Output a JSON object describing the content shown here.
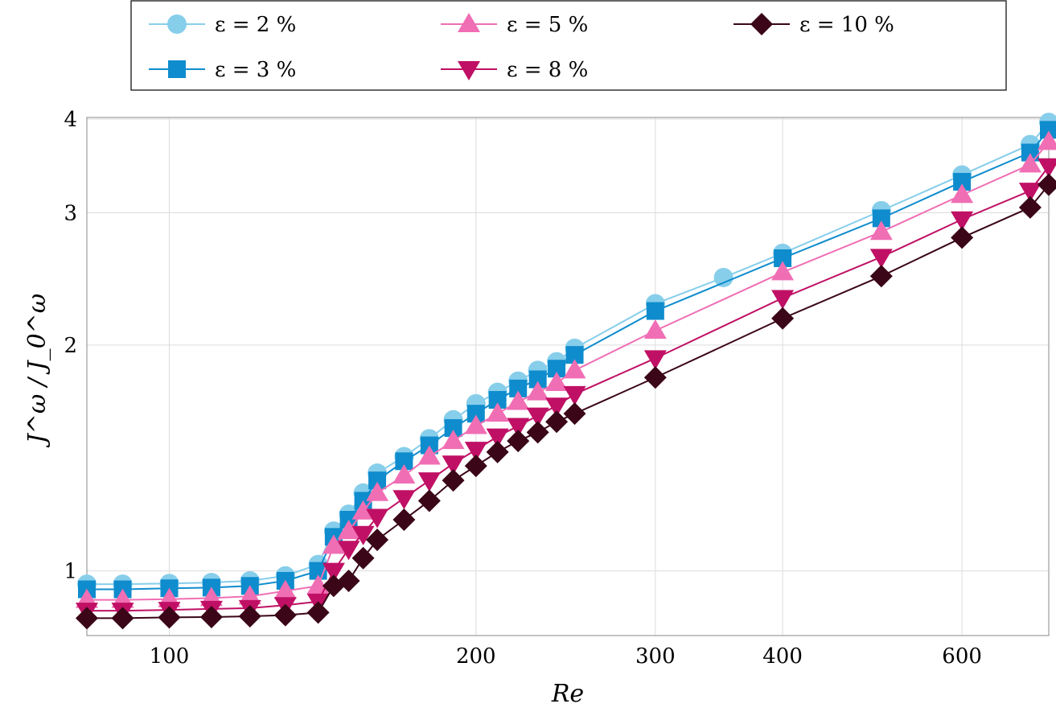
{
  "chart_data": {
    "type": "line",
    "title": "",
    "xlabel": "Re",
    "ylabel": "J^ω / J_0^ω",
    "x_scale": "log",
    "y_scale": "log",
    "xlim": [
      83,
      730
    ],
    "ylim": [
      0.82,
      4.02
    ],
    "x_ticks": [
      100,
      200,
      300,
      400,
      600
    ],
    "x_tick_labels": [
      "100",
      "200",
      "300",
      "400",
      "600"
    ],
    "y_ticks": [
      1,
      2,
      3,
      4
    ],
    "y_tick_labels": [
      "1",
      "2",
      "3",
      "4"
    ],
    "grid": true,
    "legend_position": "top, outside plot, 3 columns",
    "x": [
      83,
      90,
      100,
      110,
      120,
      130,
      140,
      145,
      150,
      155,
      160,
      170,
      180,
      190,
      200,
      210,
      220,
      230,
      240,
      250,
      300,
      350,
      400,
      500,
      600,
      700,
      730
    ],
    "series": [
      {
        "name": "ε = 2 %",
        "color": "#87ceeb",
        "marker": "circle",
        "values": [
          0.96,
          0.96,
          0.962,
          0.965,
          0.97,
          0.985,
          1.02,
          1.13,
          1.19,
          1.27,
          1.35,
          1.42,
          1.5,
          1.59,
          1.67,
          1.73,
          1.79,
          1.85,
          1.9,
          1.98,
          2.27,
          2.46,
          2.65,
          3.02,
          3.37,
          3.7,
          3.96
        ]
      },
      {
        "name": "ε = 3 %",
        "color": "#0f8ccd",
        "marker": "square",
        "values": [
          0.945,
          0.945,
          0.948,
          0.95,
          0.955,
          0.97,
          1.0,
          1.11,
          1.17,
          1.24,
          1.32,
          1.4,
          1.47,
          1.55,
          1.62,
          1.69,
          1.75,
          1.8,
          1.86,
          1.94,
          2.22,
          null,
          2.61,
          2.95,
          3.3,
          3.61,
          3.87
        ]
      },
      {
        "name": "ε = 5 %",
        "color": "#f06eb4",
        "marker": "triangle-up",
        "values": [
          0.915,
          0.915,
          0.917,
          0.92,
          0.925,
          0.94,
          0.955,
          1.08,
          1.13,
          1.2,
          1.27,
          1.34,
          1.42,
          1.49,
          1.56,
          1.62,
          1.68,
          1.73,
          1.78,
          1.85,
          2.09,
          null,
          2.5,
          2.83,
          3.17,
          3.48,
          3.73
        ]
      },
      {
        "name": "ε = 8 %",
        "color": "#c01065",
        "marker": "triangle-down",
        "values": [
          0.885,
          0.885,
          0.887,
          0.89,
          0.892,
          0.9,
          0.91,
          1.0,
          1.07,
          1.12,
          1.18,
          1.25,
          1.32,
          1.39,
          1.45,
          1.51,
          1.56,
          1.61,
          1.66,
          1.72,
          1.92,
          null,
          2.31,
          2.62,
          2.94,
          3.21,
          3.46
        ]
      },
      {
        "name": "ε = 10 %",
        "color": "#3a0618",
        "marker": "diamond",
        "values": [
          0.865,
          0.865,
          0.867,
          0.868,
          0.87,
          0.873,
          0.88,
          0.955,
          0.97,
          1.04,
          1.1,
          1.17,
          1.24,
          1.32,
          1.38,
          1.44,
          1.49,
          1.53,
          1.58,
          1.62,
          1.81,
          null,
          2.17,
          2.47,
          2.78,
          3.05,
          3.27
        ]
      }
    ]
  }
}
